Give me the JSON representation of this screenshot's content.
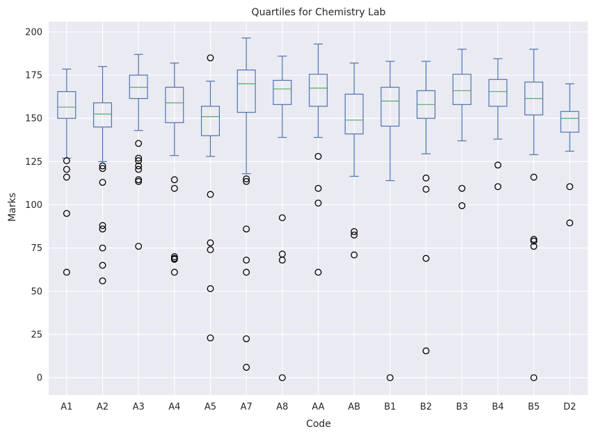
{
  "chart_data": {
    "type": "box",
    "title": "Quartiles for Chemistry Lab",
    "xlabel": "Code",
    "ylabel": "Marks",
    "ylim": [
      -10,
      206
    ],
    "yticks": [
      0,
      25,
      50,
      75,
      100,
      125,
      150,
      175,
      200
    ],
    "grid": true,
    "categories": [
      "A1",
      "A2",
      "A3",
      "A4",
      "A5",
      "A7",
      "A8",
      "AA",
      "AB",
      "B1",
      "B2",
      "B3",
      "B4",
      "B5",
      "D2"
    ],
    "boxes": [
      {
        "category": "A1",
        "whisker_low": 127,
        "q1": 150,
        "median": 156.5,
        "q3": 165.5,
        "whisker_high": 178.5,
        "outliers": [
          125.5,
          120.5,
          116,
          95,
          61
        ]
      },
      {
        "category": "A2",
        "whisker_low": 125,
        "q1": 145,
        "median": 152.5,
        "q3": 159,
        "whisker_high": 180,
        "outliers": [
          122.5,
          121,
          113,
          88,
          86,
          75,
          65,
          56
        ]
      },
      {
        "category": "A3",
        "whisker_low": 143,
        "q1": 161.5,
        "median": 168,
        "q3": 175,
        "whisker_high": 187,
        "outliers": [
          135.5,
          127,
          125.5,
          122.5,
          120.5,
          114.5,
          113.5,
          76
        ]
      },
      {
        "category": "A4",
        "whisker_low": 128.5,
        "q1": 147.5,
        "median": 159,
        "q3": 168,
        "whisker_high": 182,
        "outliers": [
          114.5,
          109.5,
          70,
          69,
          68.5,
          61
        ]
      },
      {
        "category": "A5",
        "whisker_low": 128,
        "q1": 140,
        "median": 151,
        "q3": 157,
        "whisker_high": 171.5,
        "outliers": [
          185,
          106,
          78,
          74,
          51.5,
          23
        ]
      },
      {
        "category": "A7",
        "whisker_low": 118,
        "q1": 153.5,
        "median": 170,
        "q3": 178,
        "whisker_high": 196.5,
        "outliers": [
          115,
          113.5,
          86,
          68,
          61,
          22.5,
          6
        ]
      },
      {
        "category": "A8",
        "whisker_low": 139,
        "q1": 158,
        "median": 167,
        "q3": 172,
        "whisker_high": 186,
        "outliers": [
          92.5,
          71.5,
          68,
          0
        ]
      },
      {
        "category": "AA",
        "whisker_low": 139,
        "q1": 157,
        "median": 167.5,
        "q3": 175.5,
        "whisker_high": 193,
        "outliers": [
          128,
          109.5,
          101,
          61
        ]
      },
      {
        "category": "AB",
        "whisker_low": 116.5,
        "q1": 141,
        "median": 149,
        "q3": 164,
        "whisker_high": 182,
        "outliers": [
          84.5,
          82.5,
          71
        ]
      },
      {
        "category": "B1",
        "whisker_low": 114,
        "q1": 145.5,
        "median": 160,
        "q3": 168,
        "whisker_high": 183,
        "outliers": [
          0
        ]
      },
      {
        "category": "B2",
        "whisker_low": 129.5,
        "q1": 150,
        "median": 158,
        "q3": 166,
        "whisker_high": 183,
        "outliers": [
          115.5,
          109,
          69,
          15.5
        ]
      },
      {
        "category": "B3",
        "whisker_low": 137,
        "q1": 158,
        "median": 166,
        "q3": 175.5,
        "whisker_high": 190,
        "outliers": [
          109.5,
          99.5
        ]
      },
      {
        "category": "B4",
        "whisker_low": 138,
        "q1": 157,
        "median": 165.5,
        "q3": 172.5,
        "whisker_high": 184.5,
        "outliers": [
          123,
          110.5
        ]
      },
      {
        "category": "B5",
        "whisker_low": 129,
        "q1": 152,
        "median": 161.5,
        "q3": 171,
        "whisker_high": 190,
        "outliers": [
          116,
          80,
          79,
          76,
          0
        ]
      },
      {
        "category": "D2",
        "whisker_low": 131,
        "q1": 142,
        "median": 150,
        "q3": 154,
        "whisker_high": 170,
        "outliers": [
          110.5,
          89.5
        ]
      }
    ],
    "colors": {
      "background": "#eaeaf2",
      "grid": "#ffffff",
      "box": "#4c72b0",
      "median": "#55a868",
      "outlier": "#000000",
      "text": "#262626"
    }
  }
}
